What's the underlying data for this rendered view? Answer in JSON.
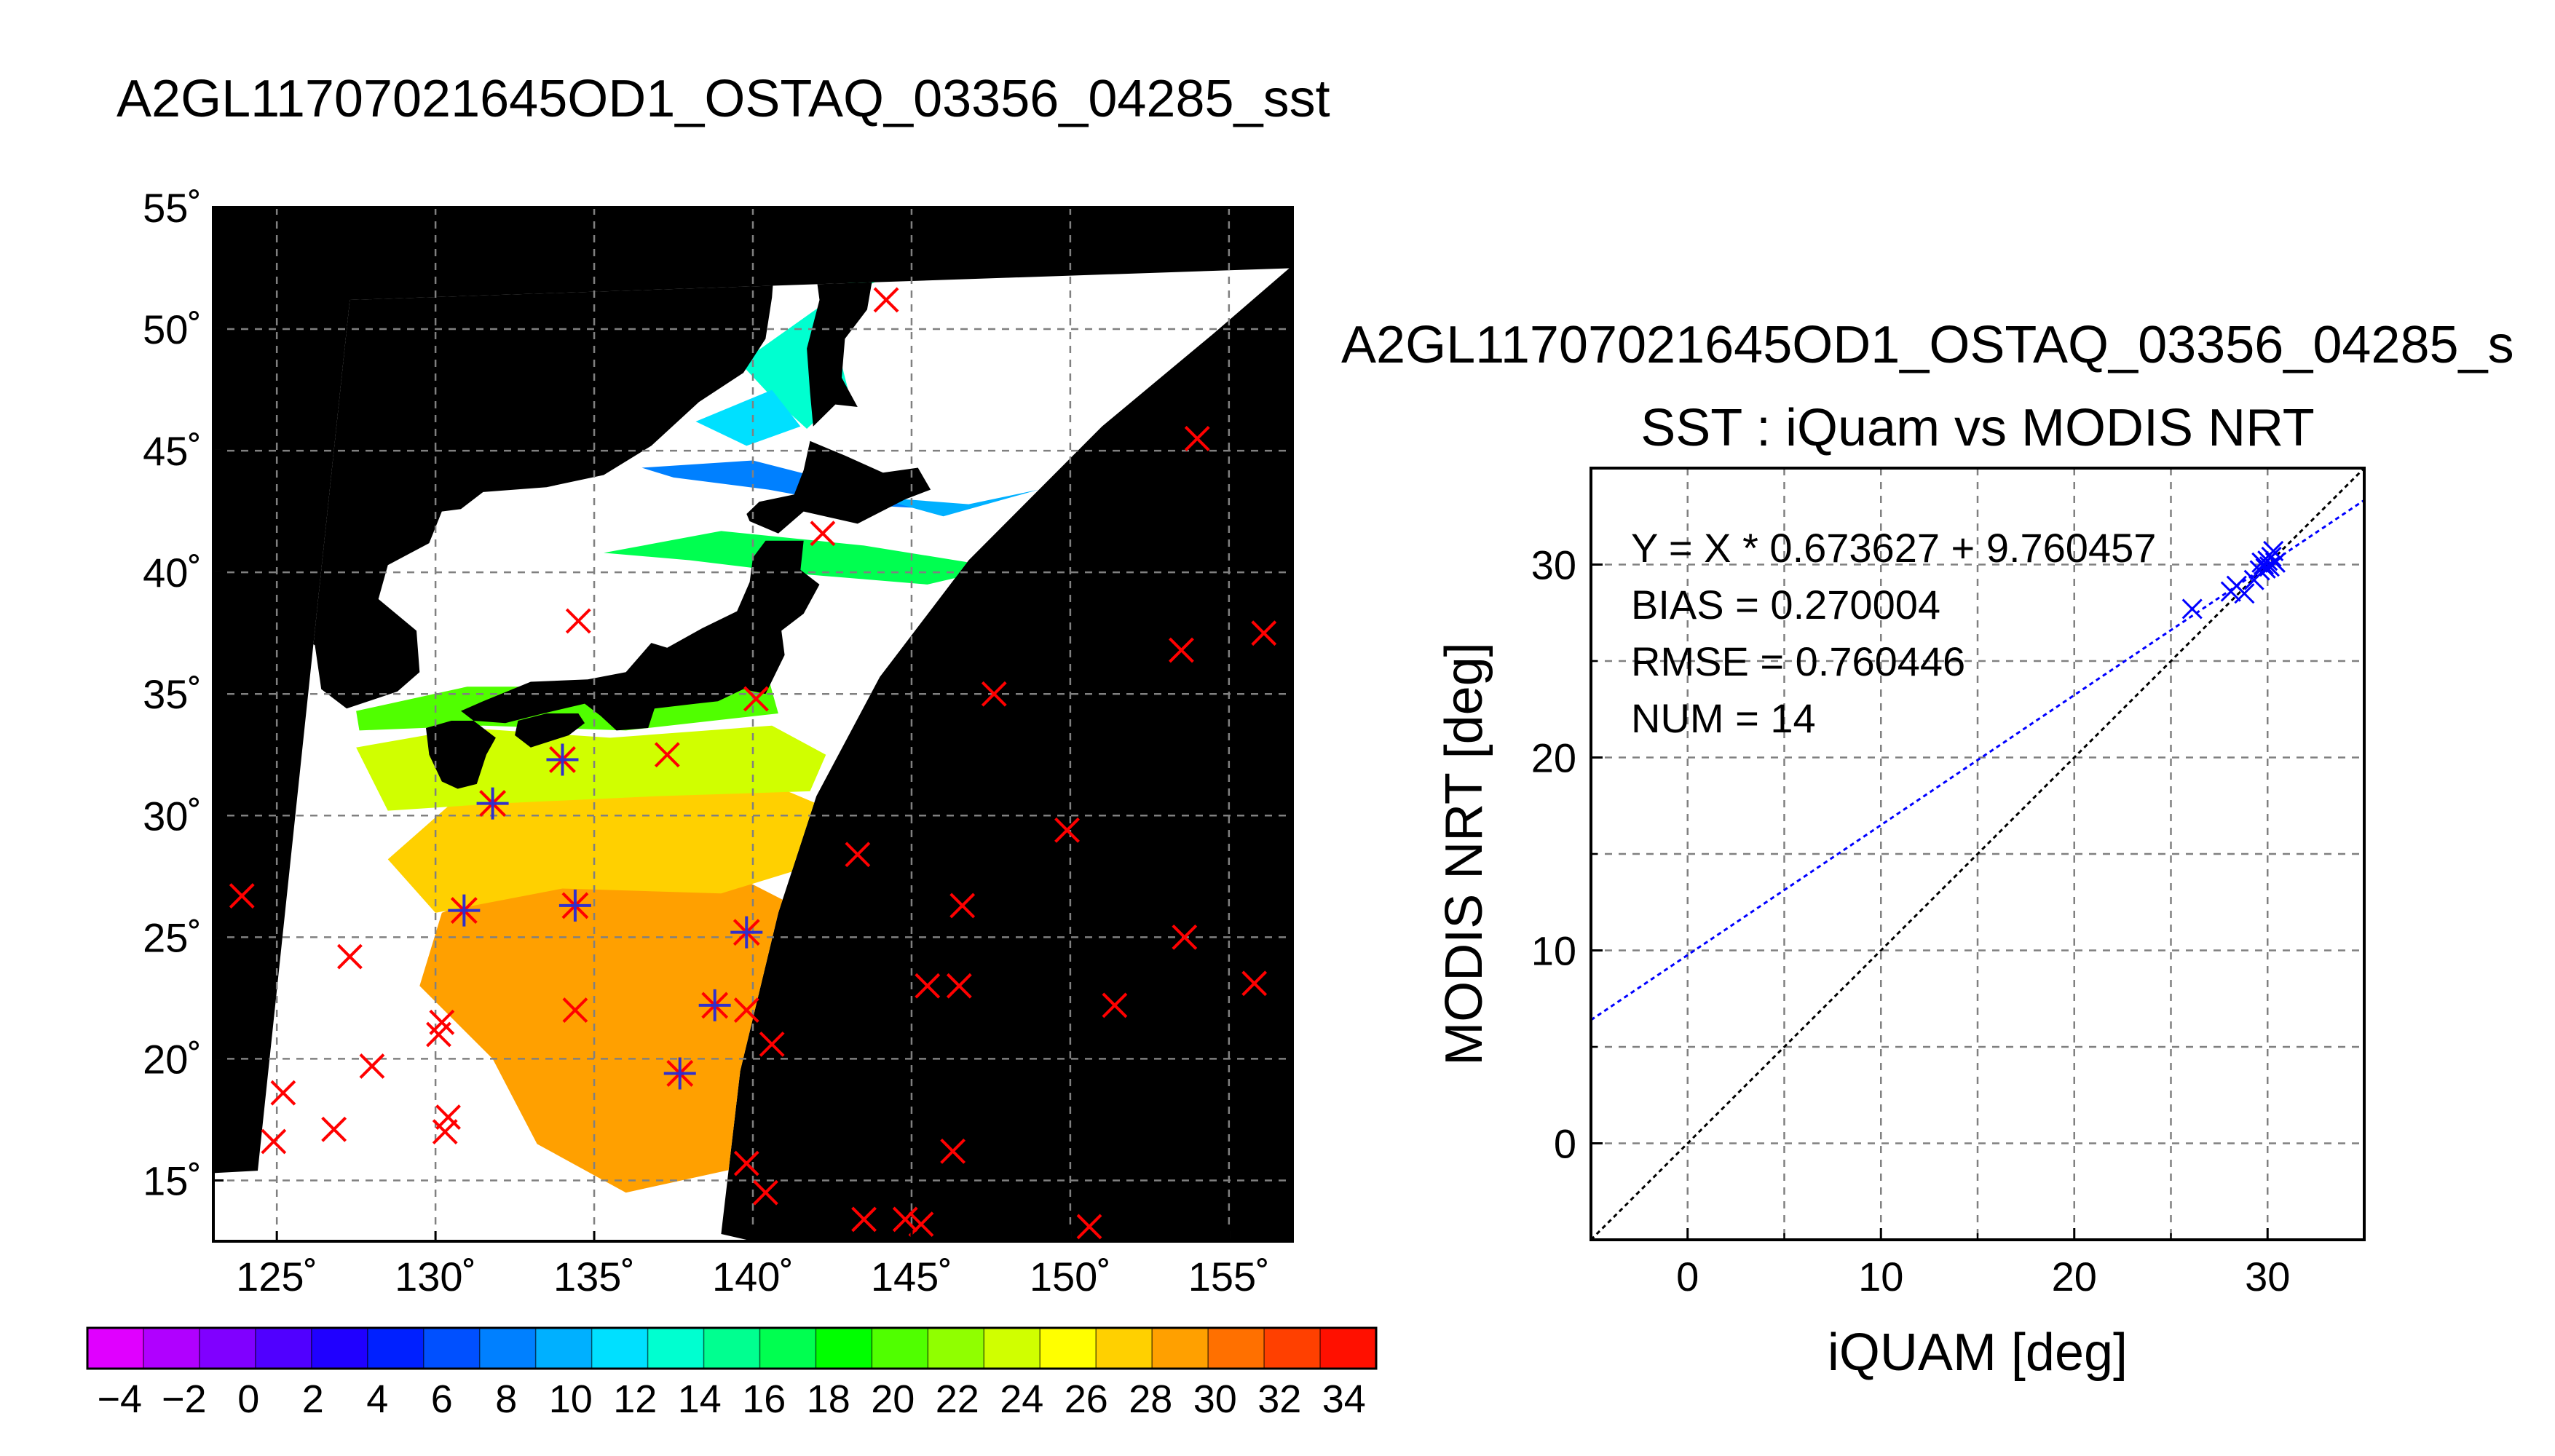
{
  "map_title": "A2GL11707021645OD1_OSTAQ_03356_04285_sst",
  "scatter_title": "A2GL11707021645OD1_OSTAQ_03356_04285_s",
  "colors": {
    "background": "#ffffff",
    "land": "#000000",
    "cloud": "#ffffff",
    "grid": "#808080",
    "buoy_marker": "#ff0000",
    "matchup_marker": "#3030cc",
    "fit_line": "#0000ff",
    "identity_line": "#000000"
  },
  "chart_data": [
    {
      "type": "map",
      "title": "A2GL11707021645OD1_OSTAQ_03356_04285_sst",
      "xlim": [
        123,
        157
      ],
      "ylim": [
        12.5,
        55
      ],
      "xticks": [
        125,
        130,
        135,
        140,
        145,
        150,
        155
      ],
      "yticks": [
        15,
        20,
        25,
        30,
        35,
        40,
        45,
        50,
        55
      ],
      "xticklabels": [
        "125˚",
        "130˚",
        "135˚",
        "140˚",
        "145˚",
        "150˚",
        "155˚"
      ],
      "yticklabels": [
        "15˚",
        "20˚",
        "25˚",
        "30˚",
        "35˚",
        "40˚",
        "45˚",
        "50˚",
        "55˚"
      ],
      "grid": true,
      "colorbar": {
        "min": -5,
        "max": 35,
        "step": 2,
        "ticks": [
          -4,
          -2,
          0,
          2,
          4,
          6,
          8,
          10,
          12,
          14,
          16,
          18,
          20,
          22,
          24,
          26,
          28,
          30,
          32,
          34
        ],
        "ticklabels": [
          "−4",
          "−2",
          "0",
          "2",
          "4",
          "6",
          "8",
          "10",
          "12",
          "14",
          "16",
          "18",
          "20",
          "22",
          "24",
          "26",
          "28",
          "30",
          "32",
          "34"
        ],
        "colors": [
          "#e000ff",
          "#b000ff",
          "#8000ff",
          "#5000ff",
          "#2000ff",
          "#0020ff",
          "#0050ff",
          "#0080ff",
          "#00b0ff",
          "#00e0ff",
          "#00ffd0",
          "#00ff90",
          "#00ff50",
          "#00ff00",
          "#50ff00",
          "#90ff00",
          "#d0ff00",
          "#ffff00",
          "#ffd000",
          "#ffa000",
          "#ff7000",
          "#ff4000",
          "#ff1000"
        ]
      },
      "buoy_points": [
        [
          123.9,
          26.7
        ],
        [
          124.9,
          16.6
        ],
        [
          125.2,
          18.6
        ],
        [
          126.8,
          17.1
        ],
        [
          127.3,
          24.2
        ],
        [
          128,
          19.7
        ],
        [
          130.1,
          21
        ],
        [
          130.2,
          21.5
        ],
        [
          130.3,
          17
        ],
        [
          130.4,
          17.6
        ],
        [
          134.5,
          38
        ],
        [
          134.4,
          22
        ],
        [
          137.3,
          32.5
        ],
        [
          140.1,
          34.8
        ],
        [
          139.8,
          22
        ],
        [
          139.8,
          15.7
        ],
        [
          140.4,
          14.5
        ],
        [
          140.6,
          20.6
        ],
        [
          142.2,
          41.6
        ],
        [
          143.3,
          28.4
        ],
        [
          143.5,
          13.4
        ],
        [
          144.2,
          51.2
        ],
        [
          144.8,
          13.4
        ],
        [
          145.3,
          13.2
        ],
        [
          145.5,
          23
        ],
        [
          146.3,
          16.2
        ],
        [
          146.5,
          23
        ],
        [
          146.6,
          26.3
        ],
        [
          147.6,
          35
        ],
        [
          149.9,
          29.4
        ],
        [
          150.6,
          13.1
        ],
        [
          151.4,
          22.2
        ],
        [
          153.5,
          36.8
        ],
        [
          153.6,
          25
        ],
        [
          154,
          45.5
        ],
        [
          155.8,
          23.1
        ],
        [
          156.1,
          37.5
        ]
      ],
      "matchup_points": [
        [
          131.8,
          30.5
        ],
        [
          134,
          32.3
        ],
        [
          130.9,
          26.1
        ],
        [
          134.4,
          26.3
        ],
        [
          139.8,
          25.2
        ],
        [
          138.8,
          22.2
        ],
        [
          137.7,
          19.4
        ]
      ]
    },
    {
      "type": "scatter",
      "title": "SST : iQuam vs MODIS NRT",
      "xlabel": "iQUAM [deg]",
      "ylabel": "MODIS NRT [deg]",
      "xlim": [
        -5,
        35
      ],
      "ylim": [
        -5,
        35
      ],
      "xticks": [
        0,
        10,
        20,
        30
      ],
      "yticks": [
        0,
        10,
        20,
        30
      ],
      "grid": true,
      "annotations": [
        "Y = X * 0.673627 + 9.760457",
        "BIAS = 0.270004",
        "RMSE = 0.760446",
        "NUM = 14"
      ],
      "fit": {
        "slope": 0.673627,
        "intercept": 9.760457
      },
      "points": [
        [
          26.1,
          27.7
        ],
        [
          28.1,
          28.6
        ],
        [
          28.4,
          28.9
        ],
        [
          28.8,
          28.5
        ],
        [
          29.3,
          29.2
        ],
        [
          29.6,
          29.7
        ],
        [
          29.8,
          30
        ],
        [
          29.9,
          29.8
        ],
        [
          30,
          30.2
        ],
        [
          30.1,
          29.9
        ],
        [
          30.2,
          30.4
        ],
        [
          30.3,
          30.7
        ],
        [
          29.7,
          30.1
        ],
        [
          30.4,
          30.1
        ]
      ]
    }
  ]
}
